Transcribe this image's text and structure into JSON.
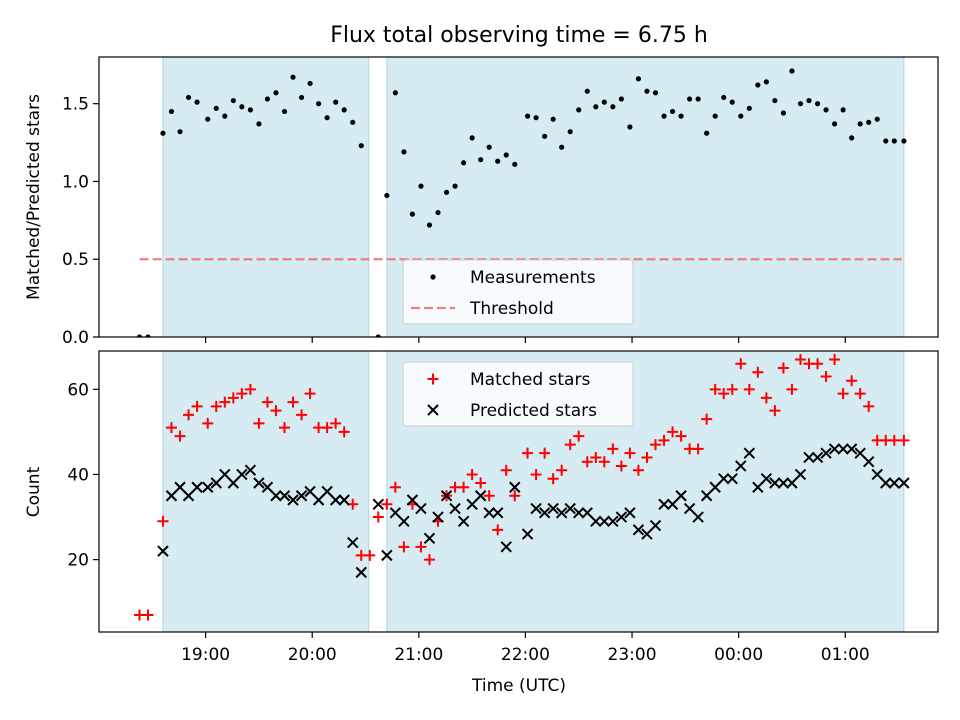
{
  "chart_data": [
    {
      "type": "scatter",
      "title": "Flux total observing time = 6.75 h",
      "xlabel": "",
      "ylabel": "Matched/Predicted stars",
      "ylim": [
        0,
        1.8
      ],
      "yticks": [
        "0.0",
        "0.5",
        "1.0",
        "1.5"
      ],
      "ytick_values": [
        0,
        0.5,
        1.0,
        1.5
      ],
      "xlim_hours": [
        18.0,
        25.87
      ],
      "shaded_intervals": [
        [
          18.6,
          20.53
        ],
        [
          20.7,
          25.55
        ]
      ],
      "threshold": {
        "y": 0.5,
        "x_range": [
          18.38,
          25.53
        ],
        "color": "#f08080"
      },
      "legend": {
        "position": "lower-center",
        "entries": [
          {
            "label": "Measurements",
            "marker": "dot"
          },
          {
            "label": "Threshold",
            "marker": "dashed-line"
          }
        ]
      },
      "series": [
        {
          "name": "Measurements",
          "color": "#000000",
          "x": [
            18.38,
            18.46,
            18.6,
            18.68,
            18.76,
            18.84,
            18.92,
            19.02,
            19.1,
            19.18,
            19.26,
            19.34,
            19.42,
            19.5,
            19.58,
            19.66,
            19.74,
            19.82,
            19.9,
            19.98,
            20.06,
            20.14,
            20.22,
            20.3,
            20.38,
            20.46,
            20.62,
            20.7,
            20.78,
            20.86,
            20.94,
            21.02,
            21.1,
            21.18,
            21.26,
            21.34,
            21.42,
            21.5,
            21.58,
            21.66,
            21.74,
            21.82,
            21.9,
            22.02,
            22.1,
            22.18,
            22.26,
            22.34,
            22.42,
            22.5,
            22.58,
            22.66,
            22.74,
            22.82,
            22.9,
            22.98,
            23.06,
            23.14,
            23.22,
            23.3,
            23.38,
            23.46,
            23.54,
            23.62,
            23.7,
            23.78,
            23.86,
            23.94,
            24.02,
            24.1,
            24.18,
            24.26,
            24.34,
            24.42,
            24.5,
            24.58,
            24.66,
            24.74,
            24.82,
            24.9,
            24.98,
            25.06,
            25.14,
            25.22,
            25.3,
            25.38,
            25.46,
            25.55
          ],
          "y": [
            0.0,
            0.0,
            1.31,
            1.45,
            1.32,
            1.54,
            1.51,
            1.4,
            1.47,
            1.42,
            1.52,
            1.48,
            1.46,
            1.37,
            1.53,
            1.57,
            1.45,
            1.67,
            1.54,
            1.63,
            1.5,
            1.41,
            1.51,
            1.46,
            1.38,
            1.23,
            0.0,
            0.91,
            1.57,
            1.19,
            0.79,
            0.97,
            0.72,
            0.8,
            0.93,
            0.97,
            1.12,
            1.28,
            1.14,
            1.22,
            1.13,
            1.17,
            1.11,
            1.42,
            1.41,
            1.29,
            1.4,
            1.22,
            1.32,
            1.46,
            1.58,
            1.48,
            1.51,
            1.48,
            1.53,
            1.35,
            1.66,
            1.58,
            1.57,
            1.42,
            1.45,
            1.42,
            1.53,
            1.53,
            1.31,
            1.42,
            1.54,
            1.51,
            1.42,
            1.47,
            1.62,
            1.64,
            1.52,
            1.44,
            1.71,
            1.5,
            1.52,
            1.5,
            1.46,
            1.37,
            1.46,
            1.28,
            1.37,
            1.38,
            1.4,
            1.26,
            1.26,
            1.26
          ]
        }
      ]
    },
    {
      "type": "scatter",
      "title": "",
      "xlabel": "Time (UTC)",
      "ylabel": "Count",
      "ylim": [
        3,
        69
      ],
      "yticks": [
        "20",
        "40",
        "60"
      ],
      "ytick_values": [
        20,
        40,
        60
      ],
      "xlim_hours": [
        18.0,
        25.87
      ],
      "xticks": [
        "19:00",
        "20:00",
        "21:00",
        "22:00",
        "23:00",
        "00:00",
        "01:00"
      ],
      "xtick_values": [
        19,
        20,
        21,
        22,
        23,
        24,
        25
      ],
      "shaded_intervals": [
        [
          18.6,
          20.53
        ],
        [
          20.7,
          25.55
        ]
      ],
      "legend": {
        "position": "upper-center",
        "entries": [
          {
            "label": "Matched stars",
            "marker": "plus"
          },
          {
            "label": "Predicted stars",
            "marker": "cross"
          }
        ]
      },
      "series": [
        {
          "name": "Matched stars",
          "color": "#ff0000",
          "marker": "plus",
          "x": [
            18.38,
            18.46,
            18.6,
            18.68,
            18.76,
            18.84,
            18.92,
            19.02,
            19.1,
            19.18,
            19.26,
            19.34,
            19.42,
            19.5,
            19.58,
            19.66,
            19.74,
            19.82,
            19.9,
            19.98,
            20.06,
            20.14,
            20.22,
            20.3,
            20.38,
            20.46,
            20.54,
            20.62,
            20.7,
            20.78,
            20.86,
            20.94,
            21.02,
            21.1,
            21.18,
            21.26,
            21.34,
            21.42,
            21.5,
            21.58,
            21.66,
            21.74,
            21.82,
            21.9,
            22.02,
            22.1,
            22.18,
            22.26,
            22.34,
            22.42,
            22.5,
            22.58,
            22.66,
            22.74,
            22.82,
            22.9,
            22.98,
            23.06,
            23.14,
            23.22,
            23.3,
            23.38,
            23.46,
            23.54,
            23.62,
            23.7,
            23.78,
            23.86,
            23.94,
            24.02,
            24.1,
            24.18,
            24.26,
            24.34,
            24.42,
            24.5,
            24.58,
            24.66,
            24.74,
            24.82,
            24.9,
            24.98,
            25.06,
            25.14,
            25.22,
            25.3,
            25.38,
            25.46,
            25.55
          ],
          "y": [
            7,
            7,
            29,
            51,
            49,
            54,
            56,
            52,
            56,
            57,
            58,
            59,
            60,
            52,
            57,
            55,
            51,
            57,
            54,
            59,
            51,
            51,
            52,
            50,
            33,
            21,
            21,
            30,
            33,
            37,
            23,
            33,
            23,
            20,
            29,
            35,
            37,
            37,
            40,
            38,
            35,
            27,
            41,
            35,
            45,
            40,
            45,
            39,
            41,
            47,
            49,
            43,
            44,
            43,
            46,
            42,
            45,
            41,
            44,
            47,
            48,
            50,
            49,
            46,
            46,
            53,
            60,
            59,
            60,
            66,
            60,
            64,
            58,
            55,
            65,
            60,
            67,
            66,
            66,
            63,
            67,
            59,
            62,
            59,
            56,
            48,
            48,
            48,
            48
          ]
        },
        {
          "name": "Predicted stars",
          "color": "#000000",
          "marker": "cross",
          "x": [
            18.6,
            18.68,
            18.76,
            18.84,
            18.92,
            19.02,
            19.1,
            19.18,
            19.26,
            19.34,
            19.42,
            19.5,
            19.58,
            19.66,
            19.74,
            19.82,
            19.9,
            19.98,
            20.06,
            20.14,
            20.22,
            20.3,
            20.38,
            20.46,
            20.62,
            20.7,
            20.78,
            20.86,
            20.94,
            21.02,
            21.1,
            21.18,
            21.26,
            21.34,
            21.42,
            21.5,
            21.58,
            21.66,
            21.74,
            21.82,
            21.9,
            22.02,
            22.1,
            22.18,
            22.26,
            22.34,
            22.42,
            22.5,
            22.58,
            22.66,
            22.74,
            22.82,
            22.9,
            22.98,
            23.06,
            23.14,
            23.22,
            23.3,
            23.38,
            23.46,
            23.54,
            23.62,
            23.7,
            23.78,
            23.86,
            23.94,
            24.02,
            24.1,
            24.18,
            24.26,
            24.34,
            24.42,
            24.5,
            24.58,
            24.66,
            24.74,
            24.82,
            24.9,
            24.98,
            25.06,
            25.14,
            25.22,
            25.3,
            25.38,
            25.46,
            25.55
          ],
          "y": [
            22,
            35,
            37,
            35,
            37,
            37,
            38,
            40,
            38,
            40,
            41,
            38,
            37,
            35,
            35,
            34,
            35,
            36,
            34,
            36,
            34,
            34,
            24,
            17,
            33,
            21,
            31,
            29,
            34,
            32,
            25,
            30,
            35,
            32,
            29,
            33,
            35,
            31,
            31,
            23,
            37,
            26,
            32,
            31,
            32,
            31,
            32,
            31,
            31,
            29,
            29,
            29,
            30,
            31,
            27,
            26,
            28,
            33,
            33,
            35,
            32,
            30,
            35,
            37,
            39,
            39,
            42,
            45,
            37,
            39,
            38,
            38,
            38,
            40,
            44,
            44,
            45,
            46,
            46,
            46,
            45,
            43,
            40,
            38,
            38,
            38
          ]
        }
      ]
    }
  ]
}
